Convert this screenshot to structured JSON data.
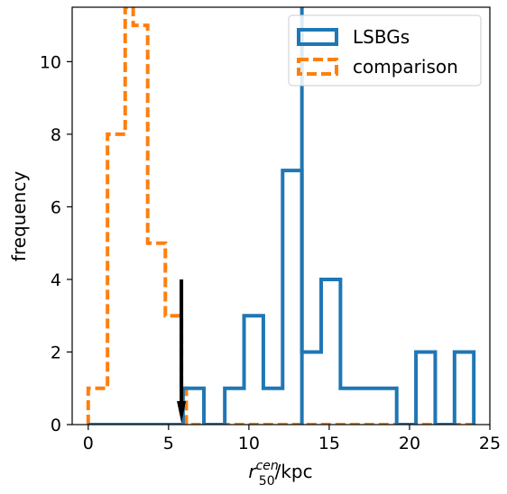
{
  "chart_data": {
    "type": "histogram",
    "xlim": [
      -1,
      25
    ],
    "ylim": [
      0,
      11.5
    ],
    "xticks": [
      "0",
      "5",
      "10",
      "15",
      "20",
      "25"
    ],
    "yticks": [
      "0",
      "2",
      "4",
      "6",
      "8",
      "10"
    ],
    "xlabel": {
      "main": "r",
      "sup": "cen",
      "sub": "50",
      "suffix": "/kpc"
    },
    "ylabel": "frequency",
    "legend": {
      "placement": "top-right",
      "items": [
        "LSBGs",
        "comparison"
      ]
    },
    "series": [
      {
        "name": "LSBGs",
        "color": "#1f77b4",
        "style": "solid",
        "bins": [
          [
            0.0,
            5.9,
            0
          ],
          [
            5.9,
            7.2,
            1
          ],
          [
            7.2,
            8.5,
            0
          ],
          [
            8.5,
            9.7,
            1
          ],
          [
            9.7,
            10.9,
            3
          ],
          [
            10.9,
            12.1,
            1
          ],
          [
            12.1,
            13.3,
            7
          ],
          [
            13.3,
            14.5,
            2
          ],
          [
            14.5,
            15.7,
            4
          ],
          [
            15.7,
            19.2,
            1
          ],
          [
            19.2,
            20.4,
            0
          ],
          [
            20.4,
            21.6,
            2
          ],
          [
            21.6,
            22.8,
            0
          ],
          [
            22.8,
            24.0,
            2
          ]
        ]
      },
      {
        "name": "comparison",
        "color": "#ff7f0e",
        "style": "dashed",
        "bins": [
          [
            0.0,
            0.4,
            1
          ],
          [
            0.4,
            1.2,
            1
          ],
          [
            1.2,
            2.3,
            8
          ],
          [
            2.3,
            2.8,
            11.5
          ],
          [
            2.8,
            3.7,
            11
          ],
          [
            3.7,
            4.8,
            5
          ],
          [
            4.8,
            5.8,
            3
          ],
          [
            5.8,
            6.1,
            1
          ],
          [
            6.1,
            24.0,
            0
          ]
        ]
      }
    ],
    "vlines": [
      {
        "x": 13.3,
        "color": "#1f77b4"
      }
    ],
    "arrow": {
      "x": 5.8,
      "y_start": 4.0,
      "y_end": 0.05,
      "color": "#000000"
    }
  }
}
